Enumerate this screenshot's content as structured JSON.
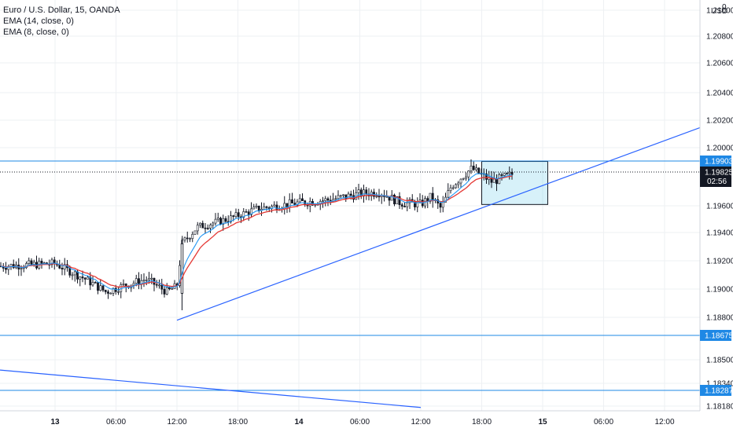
{
  "legend": {
    "symbol": "Euro / U.S. Dollar, 15, OANDA",
    "ema14": "EMA (14, close, 0)",
    "ema8": "EMA (8, close, 0)"
  },
  "axis": {
    "currency": "USD",
    "currency_badge": "0",
    "price_ticks": [
      "1.21000",
      "1.20800",
      "1.20600",
      "1.20400",
      "1.20200",
      "1.20000",
      "1.19600",
      "1.19400",
      "1.19200",
      "1.19000",
      "1.18800",
      "1.18500",
      "1.18340",
      "1.18180"
    ],
    "time_ticks": [
      {
        "label": "13",
        "x": "13",
        "bold": true
      },
      {
        "label": "06:00",
        "x": "06:00"
      },
      {
        "label": "12:00",
        "x": "12:00"
      },
      {
        "label": "18:00",
        "x": "18:00"
      },
      {
        "label": "14",
        "x": "14",
        "bold": true
      },
      {
        "label": "06:00",
        "x": "06:00"
      },
      {
        "label": "12:00",
        "x": "12:00"
      },
      {
        "label": "18:00",
        "x": "18:00"
      },
      {
        "label": "15",
        "x": "15",
        "bold": true
      },
      {
        "label": "06:00",
        "x": "06:00"
      },
      {
        "label": "12:00",
        "x": "12:00"
      }
    ]
  },
  "price_tags": {
    "resistance": "1.19903",
    "current": "1.19825",
    "countdown": "02:56",
    "support1": "1.18675",
    "support2": "1.18287"
  },
  "colors": {
    "line": "#2962ff",
    "hline": "#1e88e5",
    "ema_slow": "#e53935",
    "ema_fast": "#2196f3",
    "candle": "#131722",
    "grid": "#eef0f3",
    "zone": "rgba(96,200,230,0.25)"
  },
  "chart_data": {
    "type": "candlestick",
    "title": "Euro / U.S. Dollar, 15, OANDA",
    "series": [
      {
        "name": "EMA (14, close, 0)"
      },
      {
        "name": "EMA (8, close, 0)"
      }
    ],
    "close_path": [
      {
        "x": "12 18:00",
        "y": 1.1916
      },
      {
        "x": "13 00:00",
        "y": 1.1918
      },
      {
        "x": "13 03:00",
        "y": 1.1907
      },
      {
        "x": "13 05:00",
        "y": 1.1898
      },
      {
        "x": "13 07:00",
        "y": 1.1903
      },
      {
        "x": "13 09:00",
        "y": 1.1907
      },
      {
        "x": "13 11:00",
        "y": 1.1898
      },
      {
        "x": "13 12:00",
        "y": 1.1902
      },
      {
        "x": "13 12:30",
        "y": 1.1932
      },
      {
        "x": "13 14:00",
        "y": 1.1944
      },
      {
        "x": "13 17:00",
        "y": 1.195
      },
      {
        "x": "13 20:00",
        "y": 1.1958
      },
      {
        "x": "14 00:00",
        "y": 1.1962
      },
      {
        "x": "14 03:00",
        "y": 1.1964
      },
      {
        "x": "14 06:00",
        "y": 1.1968
      },
      {
        "x": "14 08:00",
        "y": 1.1969
      },
      {
        "x": "14 10:00",
        "y": 1.1962
      },
      {
        "x": "14 12:00",
        "y": 1.1961
      },
      {
        "x": "14 13:00",
        "y": 1.1966
      },
      {
        "x": "14 14:00",
        "y": 1.1958
      },
      {
        "x": "14 15:00",
        "y": 1.1973
      },
      {
        "x": "14 17:00",
        "y": 1.1985
      },
      {
        "x": "14 19:00",
        "y": 1.1976
      },
      {
        "x": "14 21:00",
        "y": 1.1981
      }
    ],
    "ylim": [
      1.181,
      1.211
    ],
    "resistance": 1.19903,
    "current_price": 1.19825,
    "supports": [
      1.18675,
      1.18287
    ],
    "trendline": {
      "from": {
        "x": "13 12:00",
        "y": 1.1878
      },
      "to": {
        "x": "15 16:00",
        "y": 1.2016
      }
    },
    "downtrend": {
      "from": {
        "x": "12 18:00",
        "y": 1.1843
      },
      "to": {
        "x": "14 12:00",
        "y": 1.1817
      }
    },
    "zone": {
      "x0": "14 18:00",
      "x1": "15 00:30",
      "y0": 1.1975,
      "y1": 1.199
    }
  }
}
